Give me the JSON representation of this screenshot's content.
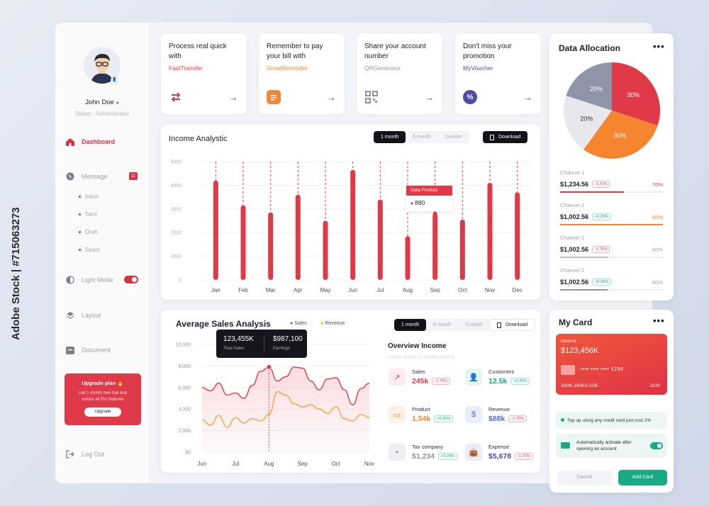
{
  "watermark": "Adobe Stock | #715063273",
  "user": {
    "name": "John Doe",
    "status": "Status : Administrator"
  },
  "nav": {
    "dashboard": "Dashboard",
    "message": "Message",
    "message_count": "11",
    "sub": [
      "Inbox",
      "Sent",
      "Draft",
      "Spam"
    ],
    "light_mode": "Light Mode",
    "layout": "Layout",
    "document": "Document",
    "logout": "Log Out"
  },
  "upgrade": {
    "title": "Upgrade plan 🔥",
    "desc": "Get 1 month free trial and unlock all Pro features",
    "button": "Upgrade"
  },
  "cards": [
    {
      "title": "Process real quick with",
      "sub": "FastTransfer",
      "color": "#e03a49"
    },
    {
      "title": "Remember to pay your bill with",
      "sub": "GreatReminder",
      "color": "#f5862f"
    },
    {
      "title": "Share your account number",
      "sub": "QRGenerator",
      "color": "#8f95a3"
    },
    {
      "title": "Don't miss your promotion",
      "sub": "MyVoucher",
      "color": "#4f4aa5"
    }
  ],
  "income": {
    "title": "Income Analystic",
    "ranges": [
      "1 month",
      "6 month",
      "Custom"
    ],
    "download": "Download",
    "tooltip_label": "Data Product",
    "tooltip_value": "880"
  },
  "sales": {
    "title": "Average Sales Analysis",
    "legend": [
      "Sales",
      "Revenue"
    ],
    "ranges": [
      "1 month",
      "6 month",
      "Custom"
    ],
    "download": "Download",
    "tip_sales": "123,455K",
    "tip_sales_label": "Total Sales",
    "tip_earn": "$987,100",
    "tip_earn_label": "Earnings"
  },
  "overview": {
    "title": "Overview Income",
    "subtitle": "Lorem ipsum is simply dummy",
    "items": [
      {
        "label": "Sales",
        "value": "245k",
        "badge": "-1.75%",
        "trend": "r",
        "color": "#e03a49"
      },
      {
        "label": "Customers",
        "value": "12.5k",
        "badge": "+0.25%",
        "trend": "g",
        "color": "#1aa985"
      },
      {
        "label": "Product",
        "value": "1.54k",
        "badge": "+0.25%",
        "trend": "g",
        "color": "#f5862f"
      },
      {
        "label": "Revenue",
        "value": "$88k",
        "badge": "-1.75%",
        "trend": "r",
        "color": "#4f6bd8"
      },
      {
        "label": "Tax company",
        "value": "$1,234",
        "badge": "+0.25%",
        "trend": "g",
        "color": "#8f95a3"
      },
      {
        "label": "Expense",
        "value": "$5,678",
        "badge": "-1.75%",
        "trend": "r",
        "color": "#4f4aa5"
      }
    ]
  },
  "allocation": {
    "title": "Data Allocation",
    "channels": [
      {
        "name": "Channel 1",
        "value": "$1,234.56",
        "badge": "-1.75%",
        "trend": "r",
        "pct": "70%",
        "fill": 0.62,
        "color": "#e03a49"
      },
      {
        "name": "Channel 2",
        "value": "$1,002.56",
        "badge": "+0.25%",
        "trend": "g",
        "pct": "60%",
        "fill": 1,
        "color": "#f5862f"
      },
      {
        "name": "Channel 2",
        "value": "$1,002.56",
        "badge": "-1.75%",
        "trend": "r",
        "pct": "60%",
        "fill": 0.46,
        "color": "#b9bdc6"
      },
      {
        "name": "Channel 2",
        "value": "$1,002.56",
        "badge": "+0.25%",
        "trend": "g",
        "pct": "60%",
        "fill": 0.46,
        "color": "#8f95a3"
      }
    ]
  },
  "mycard": {
    "title": "My Card",
    "balance_label": "Balance",
    "balance": "$123,456K",
    "number": "•••• •••• •••• 1234",
    "holder": "JOHN JAMES DOE",
    "expiry": "11/24",
    "info1": "Top up using any credit card just cost 2%",
    "info2": "Automatically activate after opening an account",
    "cancel": "Cancel",
    "add": "Add Card"
  },
  "chart_data": [
    {
      "type": "bar",
      "title": "Income Analystic",
      "categories": [
        "Jan",
        "Feb",
        "Mar",
        "Apr",
        "May",
        "Jun",
        "Jul",
        "Aug",
        "Sep",
        "Oct",
        "Nov",
        "Dec"
      ],
      "values": [
        4200,
        3150,
        2850,
        3600,
        2500,
        4650,
        3400,
        1850,
        2800,
        2550,
        4100,
        3700
      ],
      "yticks": [
        "5000",
        "4000",
        "3000",
        "2000",
        "1000",
        "0"
      ],
      "ylim": [
        0,
        5000
      ]
    },
    {
      "type": "line",
      "title": "Average Sales Analysis",
      "categories": [
        "Jun",
        "Jul",
        "Aug",
        "Sep",
        "Oct",
        "Nov"
      ],
      "yticks": [
        "10,000",
        "8,000",
        "6,000",
        "4,000",
        "2,000",
        "$0"
      ],
      "ylim": [
        0,
        10000
      ],
      "series": [
        {
          "name": "Sales",
          "color": "#e03a49",
          "x": [
            0,
            0.25,
            0.5,
            0.75,
            1,
            1.25,
            1.5,
            1.75,
            2,
            2.25,
            2.5,
            2.75,
            3,
            3.25,
            3.5,
            3.75,
            4,
            4.25,
            4.5,
            4.75,
            5
          ],
          "values": [
            6000,
            5700,
            6400,
            5300,
            5500,
            5000,
            6200,
            7500,
            7900,
            6600,
            7000,
            7900,
            7800,
            6600,
            5800,
            6800,
            6900,
            5800,
            4400,
            5900,
            6400
          ]
        },
        {
          "name": "Revenue",
          "color": "#f5a33c",
          "x": [
            0,
            0.25,
            0.5,
            0.75,
            1,
            1.25,
            1.5,
            1.75,
            2,
            2.25,
            2.5,
            2.75,
            3,
            3.25,
            3.5,
            3.75,
            4,
            4.25,
            4.5,
            4.75,
            5
          ],
          "values": [
            3000,
            2500,
            3400,
            2300,
            3200,
            2700,
            3100,
            2900,
            3500,
            5600,
            5300,
            4500,
            4200,
            4400,
            4000,
            3600,
            4200,
            3100,
            2900,
            3500,
            3200
          ]
        }
      ]
    },
    {
      "type": "pie",
      "title": "Data Allocation",
      "slices": [
        {
          "label": "30%",
          "value": 30,
          "color": "#e03a49"
        },
        {
          "label": "30%",
          "value": 30,
          "color": "#f5862f"
        },
        {
          "label": "20%",
          "value": 20,
          "color": "#e6e8ec"
        },
        {
          "label": "20%",
          "value": 20,
          "color": "#8f95a8"
        }
      ]
    }
  ]
}
